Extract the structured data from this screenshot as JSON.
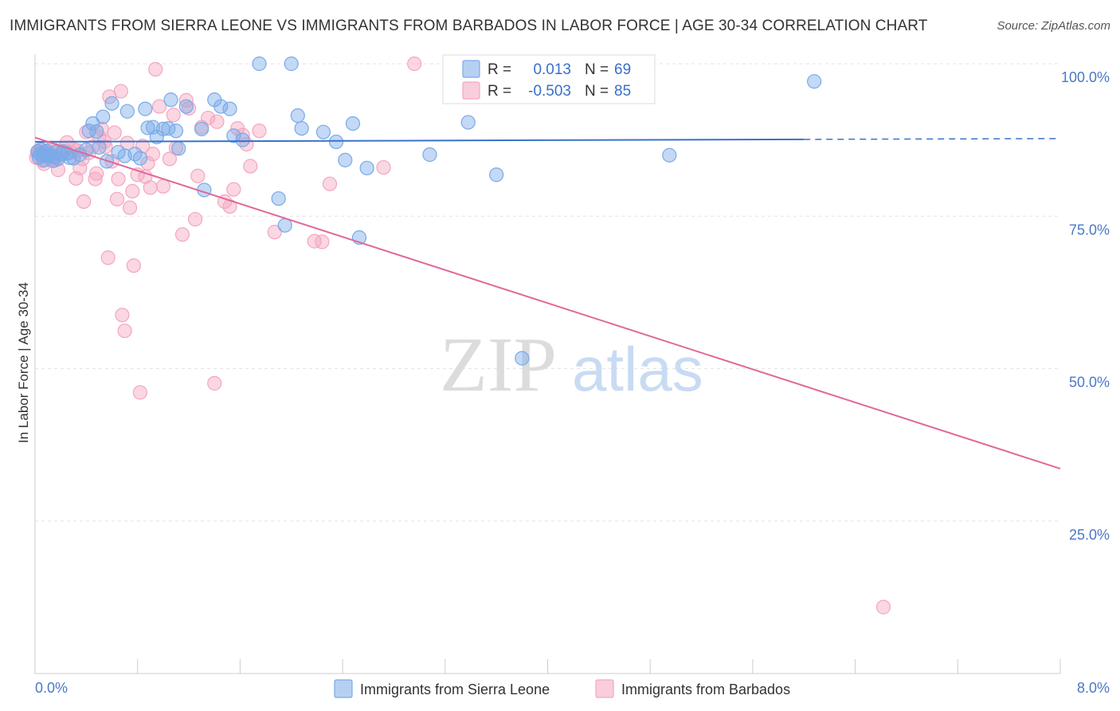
{
  "title": "IMMIGRANTS FROM SIERRA LEONE VS IMMIGRANTS FROM BARBADOS IN LABOR FORCE | AGE 30-34 CORRELATION CHART",
  "source": "Source: ZipAtlas.com",
  "watermark": {
    "zip": "ZIP",
    "atlas": "atlas"
  },
  "chart_data": {
    "type": "scatter",
    "title": "IMMIGRANTS FROM SIERRA LEONE VS IMMIGRANTS FROM BARBADOS IN LABOR FORCE | AGE 30-34 CORRELATION CHART",
    "xlabel": "",
    "ylabel": "In Labor Force | Age 30-34",
    "xlim": [
      0,
      8
    ],
    "ylim": [
      0,
      100
    ],
    "x_tick_labels": [
      "0.0%",
      "8.0%"
    ],
    "y_ticks": [
      25,
      50,
      75,
      100
    ],
    "y_tick_labels": [
      "25.0%",
      "50.0%",
      "75.0%",
      "100.0%"
    ],
    "grid": true,
    "legend_position": "bottom",
    "stats_box_position": "top-center",
    "series": [
      {
        "name": "Immigrants from Sierra Leone",
        "color": "#7aaae8",
        "line_color": "#3a72c9",
        "R": "0.013",
        "N": "69",
        "trend": {
          "x": [
            0,
            6.0
          ],
          "y": [
            87.2,
            87.6
          ],
          "dashed_to": 8.0
        },
        "points": [
          [
            0.02,
            85.6
          ],
          [
            0.03,
            84.6
          ],
          [
            0.04,
            85.2
          ],
          [
            0.05,
            85.9
          ],
          [
            0.06,
            85.0
          ],
          [
            0.07,
            84.2
          ],
          [
            0.08,
            85.4
          ],
          [
            0.09,
            85.7
          ],
          [
            0.1,
            84.9
          ],
          [
            0.12,
            85.0
          ],
          [
            0.14,
            84.1
          ],
          [
            0.15,
            84.7
          ],
          [
            0.16,
            85.5
          ],
          [
            0.18,
            84.4
          ],
          [
            0.2,
            85.2
          ],
          [
            0.22,
            85.6
          ],
          [
            0.25,
            85.3
          ],
          [
            0.3,
            84.5
          ],
          [
            0.35,
            85.1
          ],
          [
            0.4,
            85.9
          ],
          [
            0.42,
            89.0
          ],
          [
            0.45,
            90.2
          ],
          [
            0.48,
            88.9
          ],
          [
            0.5,
            86.3
          ],
          [
            0.53,
            91.3
          ],
          [
            0.56,
            84.0
          ],
          [
            0.6,
            93.5
          ],
          [
            0.65,
            85.5
          ],
          [
            0.7,
            84.9
          ],
          [
            0.72,
            92.2
          ],
          [
            0.78,
            85.2
          ],
          [
            0.82,
            84.5
          ],
          [
            0.86,
            92.6
          ],
          [
            0.88,
            89.5
          ],
          [
            0.92,
            89.6
          ],
          [
            0.95,
            88.0
          ],
          [
            1.0,
            89.3
          ],
          [
            1.04,
            89.4
          ],
          [
            1.06,
            94.1
          ],
          [
            1.1,
            89.0
          ],
          [
            1.12,
            86.1
          ],
          [
            1.18,
            93.0
          ],
          [
            1.3,
            89.3
          ],
          [
            1.32,
            79.3
          ],
          [
            1.4,
            94.1
          ],
          [
            1.45,
            93.0
          ],
          [
            1.52,
            92.6
          ],
          [
            1.55,
            88.2
          ],
          [
            1.62,
            87.5
          ],
          [
            1.75,
            100.0
          ],
          [
            1.9,
            77.9
          ],
          [
            1.95,
            73.5
          ],
          [
            2.0,
            100.0
          ],
          [
            2.05,
            91.5
          ],
          [
            2.08,
            89.4
          ],
          [
            2.25,
            88.8
          ],
          [
            2.35,
            87.2
          ],
          [
            2.42,
            84.2
          ],
          [
            2.48,
            90.2
          ],
          [
            2.59,
            82.9
          ],
          [
            3.08,
            85.1
          ],
          [
            3.24,
            100.0
          ],
          [
            3.38,
            90.4
          ],
          [
            3.6,
            81.8
          ],
          [
            2.53,
            71.5
          ],
          [
            3.8,
            51.7
          ],
          [
            4.95,
            85.0
          ],
          [
            6.08,
            97.1
          ],
          [
            0.27,
            84.6
          ]
        ]
      },
      {
        "name": "Immigrants from Barbados",
        "color": "#f4a6bf",
        "line_color": "#e0689a",
        "R": "-0.503",
        "N": "85",
        "trend": {
          "x": [
            0,
            8.0
          ],
          "y": [
            87.9,
            33.6
          ]
        },
        "points": [
          [
            0.01,
            84.6
          ],
          [
            0.02,
            85.2
          ],
          [
            0.03,
            85.6
          ],
          [
            0.04,
            86.0
          ],
          [
            0.05,
            85.1
          ],
          [
            0.06,
            84.1
          ],
          [
            0.07,
            83.6
          ],
          [
            0.08,
            85.3
          ],
          [
            0.09,
            84.8
          ],
          [
            0.1,
            85.5
          ],
          [
            0.11,
            84.3
          ],
          [
            0.12,
            85.9
          ],
          [
            0.13,
            86.2
          ],
          [
            0.15,
            85.0
          ],
          [
            0.16,
            84.2
          ],
          [
            0.18,
            82.6
          ],
          [
            0.2,
            85.0
          ],
          [
            0.22,
            86.1
          ],
          [
            0.25,
            87.1
          ],
          [
            0.28,
            85.5
          ],
          [
            0.3,
            86.0
          ],
          [
            0.32,
            81.2
          ],
          [
            0.33,
            85.8
          ],
          [
            0.35,
            82.9
          ],
          [
            0.37,
            84.4
          ],
          [
            0.38,
            77.4
          ],
          [
            0.4,
            88.8
          ],
          [
            0.42,
            85.4
          ],
          [
            0.45,
            86.4
          ],
          [
            0.47,
            81.1
          ],
          [
            0.48,
            82.0
          ],
          [
            0.5,
            88.0
          ],
          [
            0.52,
            89.3
          ],
          [
            0.54,
            87.2
          ],
          [
            0.55,
            86.4
          ],
          [
            0.57,
            68.2
          ],
          [
            0.58,
            94.6
          ],
          [
            0.6,
            84.0
          ],
          [
            0.62,
            88.7
          ],
          [
            0.64,
            77.8
          ],
          [
            0.65,
            81.1
          ],
          [
            0.67,
            95.5
          ],
          [
            0.68,
            58.8
          ],
          [
            0.7,
            56.2
          ],
          [
            0.72,
            87.0
          ],
          [
            0.74,
            76.4
          ],
          [
            0.76,
            79.1
          ],
          [
            0.77,
            66.9
          ],
          [
            0.8,
            81.8
          ],
          [
            0.82,
            46.1
          ],
          [
            0.84,
            86.5
          ],
          [
            0.86,
            81.5
          ],
          [
            0.88,
            83.7
          ],
          [
            0.9,
            79.7
          ],
          [
            0.92,
            85.2
          ],
          [
            0.94,
            99.1
          ],
          [
            0.97,
            93.0
          ],
          [
            1.0,
            79.9
          ],
          [
            1.05,
            84.4
          ],
          [
            1.08,
            91.6
          ],
          [
            1.1,
            86.2
          ],
          [
            1.15,
            72.0
          ],
          [
            1.18,
            94.0
          ],
          [
            1.2,
            92.7
          ],
          [
            1.25,
            74.5
          ],
          [
            1.27,
            81.6
          ],
          [
            1.3,
            89.6
          ],
          [
            1.35,
            91.1
          ],
          [
            1.4,
            47.6
          ],
          [
            1.42,
            90.5
          ],
          [
            1.48,
            77.4
          ],
          [
            1.52,
            76.6
          ],
          [
            1.55,
            79.4
          ],
          [
            1.58,
            89.4
          ],
          [
            1.62,
            88.3
          ],
          [
            1.65,
            86.8
          ],
          [
            1.68,
            83.2
          ],
          [
            1.75,
            89.0
          ],
          [
            1.87,
            72.4
          ],
          [
            2.18,
            70.9
          ],
          [
            2.24,
            70.8
          ],
          [
            2.3,
            80.3
          ],
          [
            2.72,
            83.0
          ],
          [
            2.96,
            100.0
          ],
          [
            6.62,
            10.9
          ]
        ]
      }
    ]
  }
}
